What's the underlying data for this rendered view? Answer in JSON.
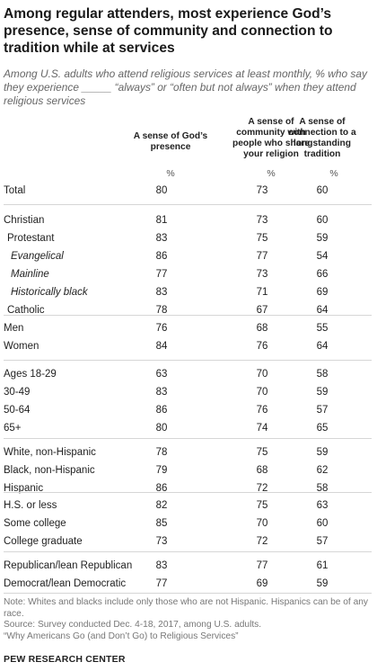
{
  "title": "Among regular attenders, most experience God’s presence, sense of community and connection to tradition while at services",
  "subtitle": "Among U.S. adults who attend religious services at least monthly, % who say they experience _____ “always” or “often but not always” when they attend religious services",
  "chart_data": {
    "type": "table",
    "columns": [
      {
        "label": "A sense of God’s presence",
        "unit": "%"
      },
      {
        "label": "A sense of community with people who share your religion",
        "unit": "%"
      },
      {
        "label": "A sense of connection to a longstanding tradition",
        "unit": "%"
      }
    ],
    "rows": [
      {
        "label": "Total",
        "level": 0,
        "values": [
          80,
          73,
          60
        ]
      },
      {
        "label": "Christian",
        "level": 0,
        "values": [
          81,
          73,
          60
        ]
      },
      {
        "label": "Protestant",
        "level": 1,
        "values": [
          83,
          75,
          59
        ]
      },
      {
        "label": "Evangelical",
        "level": 2,
        "values": [
          86,
          77,
          54
        ]
      },
      {
        "label": "Mainline",
        "level": 2,
        "values": [
          77,
          73,
          66
        ]
      },
      {
        "label": "Historically black",
        "level": 2,
        "values": [
          83,
          71,
          69
        ]
      },
      {
        "label": "Catholic",
        "level": 1,
        "values": [
          78,
          67,
          64
        ]
      },
      {
        "label": "Men",
        "level": 0,
        "values": [
          76,
          68,
          55
        ]
      },
      {
        "label": "Women",
        "level": 0,
        "values": [
          84,
          76,
          64
        ]
      },
      {
        "label": "Ages 18-29",
        "level": 0,
        "values": [
          63,
          70,
          58
        ]
      },
      {
        "label": "30-49",
        "level": 0,
        "values": [
          83,
          70,
          59
        ]
      },
      {
        "label": "50-64",
        "level": 0,
        "values": [
          86,
          76,
          57
        ]
      },
      {
        "label": "65+",
        "level": 0,
        "values": [
          80,
          74,
          65
        ]
      },
      {
        "label": "White, non-Hispanic",
        "level": 0,
        "values": [
          78,
          75,
          59
        ]
      },
      {
        "label": "Black, non-Hispanic",
        "level": 0,
        "values": [
          79,
          68,
          62
        ]
      },
      {
        "label": "Hispanic",
        "level": 0,
        "values": [
          86,
          72,
          58
        ]
      },
      {
        "label": "H.S. or less",
        "level": 0,
        "values": [
          82,
          75,
          63
        ]
      },
      {
        "label": "Some college",
        "level": 0,
        "values": [
          85,
          70,
          60
        ]
      },
      {
        "label": "College graduate",
        "level": 0,
        "values": [
          73,
          72,
          57
        ]
      },
      {
        "label": "Republican/lean Republican",
        "level": 0,
        "values": [
          83,
          77,
          61
        ]
      },
      {
        "label": "Democrat/lean Democratic",
        "level": 0,
        "values": [
          77,
          69,
          59
        ]
      }
    ]
  },
  "notes": {
    "note": "Note: Whites and blacks include only those who are not Hispanic. Hispanics can be of any race.",
    "source": "Source: Survey conducted Dec. 4-18, 2017, among U.S. adults.",
    "report": "“Why Americans Go (and Don’t Go) to Religious Services”"
  },
  "brand": "PEW RESEARCH CENTER"
}
